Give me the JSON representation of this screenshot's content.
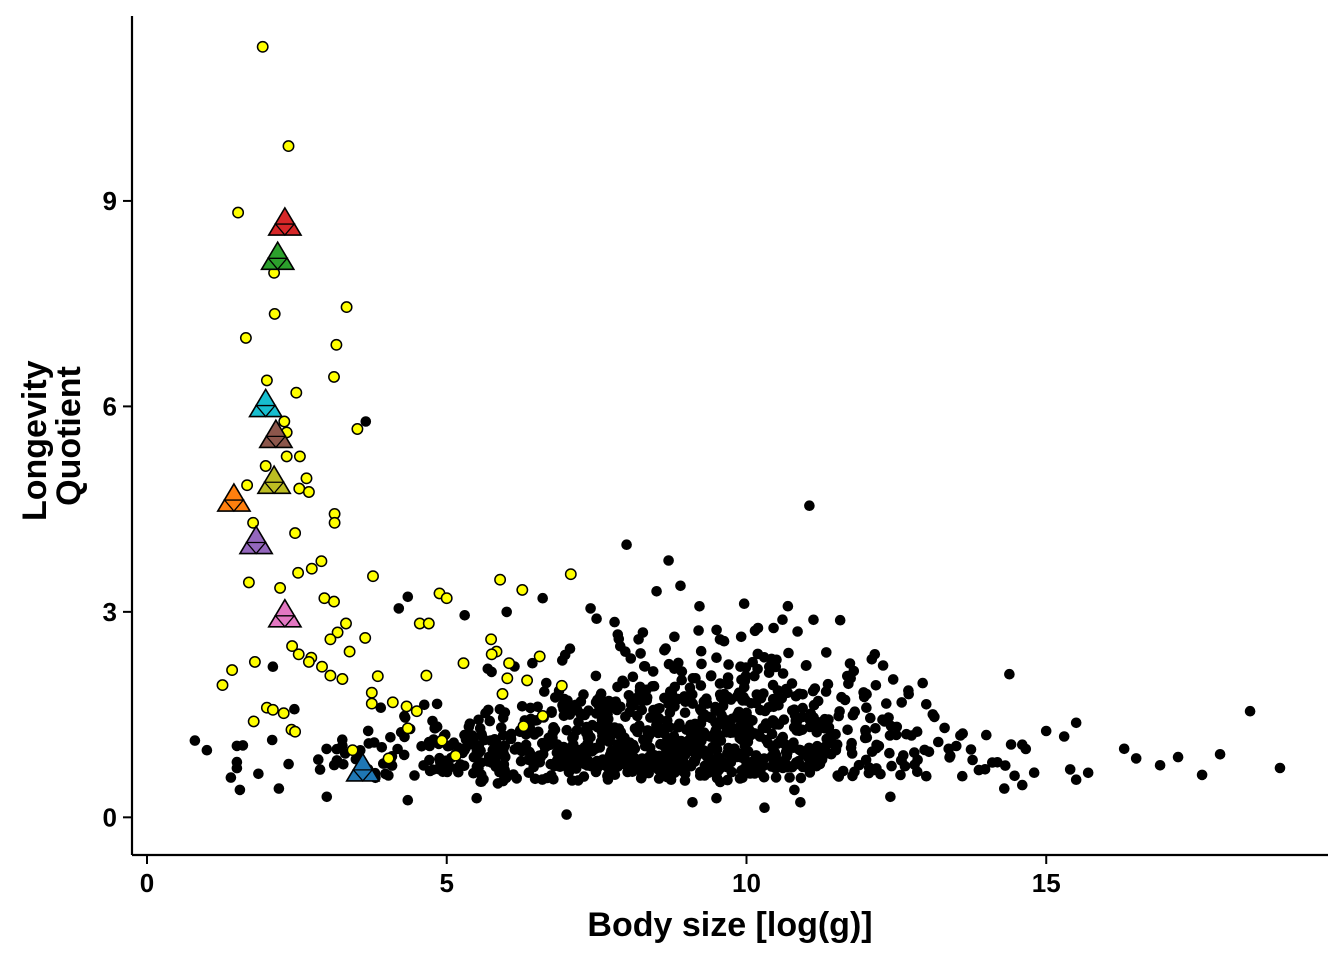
{
  "chart_data": {
    "type": "scatter",
    "title": "",
    "xlabel": "Body size [log(g)]",
    "ylabel_lines": [
      "Longevity",
      "Quotient"
    ],
    "xlim": [
      -0.25,
      19.7
    ],
    "ylim": [
      -0.55,
      11.7
    ],
    "x_ticks": [
      0,
      5,
      10,
      15
    ],
    "y_ticks": [
      0,
      3,
      6,
      9
    ],
    "grid": false,
    "legend": "none",
    "colors": {
      "black_points": "#000000",
      "yellow_points": "#ffff00",
      "point_outline": "#000000"
    },
    "series": [
      {
        "marker": "circle",
        "color": "#ffff00",
        "points": [
          [
            1.93,
            11.25
          ],
          [
            2.36,
            9.8
          ],
          [
            1.52,
            8.83
          ],
          [
            2.12,
            7.95
          ],
          [
            2.13,
            7.35
          ],
          [
            3.33,
            7.45
          ],
          [
            1.65,
            7.0
          ],
          [
            3.16,
            6.9
          ],
          [
            3.12,
            6.43
          ],
          [
            2.0,
            6.38
          ],
          [
            2.49,
            6.2
          ],
          [
            3.51,
            5.67
          ],
          [
            2.29,
            5.78
          ],
          [
            2.33,
            5.62
          ],
          [
            1.98,
            5.13
          ],
          [
            2.33,
            5.27
          ],
          [
            2.55,
            5.27
          ],
          [
            2.66,
            4.95
          ],
          [
            1.67,
            4.85
          ],
          [
            2.54,
            4.8
          ],
          [
            2.7,
            4.75
          ],
          [
            3.13,
            4.43
          ],
          [
            3.13,
            4.3
          ],
          [
            1.77,
            4.3
          ],
          [
            2.47,
            4.15
          ],
          [
            2.91,
            3.74
          ],
          [
            2.75,
            3.63
          ],
          [
            2.52,
            3.57
          ],
          [
            3.77,
            3.52
          ],
          [
            1.7,
            3.43
          ],
          [
            2.22,
            3.35
          ],
          [
            2.96,
            3.2
          ],
          [
            3.12,
            3.15
          ],
          [
            2.32,
            2.97
          ],
          [
            3.32,
            2.83
          ],
          [
            3.18,
            2.7
          ],
          [
            3.06,
            2.6
          ],
          [
            3.64,
            2.62
          ],
          [
            2.42,
            2.5
          ],
          [
            3.38,
            2.42
          ],
          [
            2.53,
            2.38
          ],
          [
            2.74,
            2.33
          ],
          [
            2.7,
            2.27
          ],
          [
            1.8,
            2.27
          ],
          [
            1.42,
            2.15
          ],
          [
            2.92,
            2.2
          ],
          [
            3.06,
            2.07
          ],
          [
            3.26,
            2.02
          ],
          [
            1.26,
            1.93
          ],
          [
            2.0,
            1.6
          ],
          [
            2.1,
            1.57
          ],
          [
            2.28,
            1.52
          ],
          [
            1.78,
            1.4
          ],
          [
            2.41,
            1.28
          ],
          [
            2.47,
            1.25
          ],
          [
            4.88,
            3.27
          ],
          [
            5.0,
            3.2
          ],
          [
            4.55,
            2.83
          ],
          [
            4.7,
            2.83
          ],
          [
            5.89,
            3.47
          ],
          [
            6.26,
            3.32
          ],
          [
            7.07,
            3.55
          ],
          [
            5.74,
            2.6
          ],
          [
            5.83,
            2.42
          ],
          [
            5.75,
            2.38
          ],
          [
            6.55,
            2.35
          ],
          [
            6.04,
            2.25
          ],
          [
            5.28,
            2.25
          ],
          [
            6.34,
            2.0
          ],
          [
            6.01,
            2.03
          ],
          [
            5.93,
            1.8
          ],
          [
            6.92,
            1.92
          ],
          [
            4.66,
            2.07
          ],
          [
            3.85,
            2.06
          ],
          [
            3.75,
            1.82
          ],
          [
            3.75,
            1.66
          ],
          [
            4.1,
            1.68
          ],
          [
            4.33,
            1.62
          ],
          [
            4.5,
            1.55
          ],
          [
            4.35,
            1.3
          ],
          [
            6.28,
            1.33
          ],
          [
            6.6,
            1.48
          ],
          [
            3.43,
            0.98
          ],
          [
            4.03,
            0.86
          ],
          [
            5.15,
            0.9
          ],
          [
            4.92,
            1.12
          ]
        ]
      },
      {
        "marker": "circle",
        "color": "#000000",
        "points": [
          [
            0.8,
            1.12
          ],
          [
            11.05,
            4.55
          ],
          [
            3.65,
            5.78
          ],
          [
            8.0,
            3.98
          ],
          [
            8.7,
            3.75
          ],
          [
            18.4,
            1.55
          ],
          [
            18.9,
            0.72
          ],
          [
            17.9,
            0.92
          ],
          [
            17.6,
            0.62
          ],
          [
            17.2,
            0.88
          ],
          [
            16.9,
            0.76
          ],
          [
            16.5,
            0.86
          ],
          [
            16.3,
            1.0
          ],
          [
            15.7,
            0.65
          ],
          [
            15.5,
            0.55
          ],
          [
            15.5,
            1.38
          ],
          [
            15.4,
            0.7
          ],
          [
            15.3,
            1.18
          ],
          [
            15.0,
            1.26
          ],
          [
            14.6,
            0.47
          ],
          [
            14.3,
            0.42
          ],
          [
            14.6,
            1.06
          ],
          [
            13.0,
            1.65
          ],
          [
            12.7,
            1.85
          ],
          [
            12.3,
            1.4
          ],
          [
            10.8,
            0.4
          ],
          [
            10.9,
            0.22
          ],
          [
            10.3,
            0.14
          ],
          [
            9.5,
            0.28
          ],
          [
            9.1,
            0.22
          ],
          [
            7.0,
            0.04
          ],
          [
            5.5,
            0.28
          ],
          [
            4.35,
            0.25
          ],
          [
            3.0,
            0.3
          ],
          [
            10.7,
            2.4
          ],
          [
            10.5,
            2.3
          ],
          [
            11.0,
            2.22
          ],
          [
            9.9,
            2.2
          ],
          [
            9.5,
            2.33
          ],
          [
            8.2,
            2.6
          ],
          [
            7.8,
            2.85
          ],
          [
            6.6,
            3.2
          ],
          [
            6.0,
            3.0
          ],
          [
            5.3,
            2.95
          ],
          [
            4.35,
            3.22
          ],
          [
            4.2,
            3.05
          ],
          [
            7.4,
            3.05
          ],
          [
            7.5,
            2.9
          ],
          [
            8.5,
            3.3
          ],
          [
            8.9,
            3.38
          ],
          [
            11.7,
            1.95
          ],
          [
            12.0,
            1.6
          ],
          [
            11.3,
            1.3
          ],
          [
            13.2,
            1.1
          ],
          [
            13.4,
            0.9
          ],
          [
            14.1,
            0.8
          ],
          [
            14.0,
            1.2
          ],
          [
            13.6,
            0.6
          ],
          [
            13.0,
            0.6
          ],
          [
            12.4,
            0.3
          ],
          [
            1.4,
            0.58
          ],
          [
            1.55,
            0.4
          ],
          [
            2.2,
            0.42
          ],
          [
            1.0,
            0.98
          ],
          [
            1.6,
            1.05
          ],
          [
            2.1,
            2.2
          ],
          [
            3.7,
            1.08
          ],
          [
            3.9,
            1.6
          ],
          [
            4.8,
            1.3
          ],
          [
            5.5,
            1.0
          ]
        ]
      }
    ],
    "dense_cluster": {
      "seed": 20240917,
      "count": 1000,
      "x_mean": 8.6,
      "x_sd": 2.25,
      "x_min": 1.5,
      "x_max": 14.8,
      "y_base": 0.62,
      "y_min": 0.05,
      "y_max": 3.9
    },
    "highlights": [
      {
        "name": "red",
        "color": "#d62728",
        "x": 2.3,
        "y": 8.65
      },
      {
        "name": "green",
        "color": "#2ca02c",
        "x": 2.18,
        "y": 8.15
      },
      {
        "name": "cyan",
        "color": "#17becf",
        "x": 1.98,
        "y": 6.0
      },
      {
        "name": "brown",
        "color": "#8c564b",
        "x": 2.15,
        "y": 5.55
      },
      {
        "name": "olive",
        "color": "#bcbd22",
        "x": 2.12,
        "y": 4.88
      },
      {
        "name": "orange",
        "color": "#ff7f0e",
        "x": 1.45,
        "y": 4.62
      },
      {
        "name": "purple",
        "color": "#9467bd",
        "x": 1.82,
        "y": 4.0
      },
      {
        "name": "pink",
        "color": "#e377c2",
        "x": 2.3,
        "y": 2.93
      },
      {
        "name": "blue",
        "color": "#1f77b4",
        "x": 3.6,
        "y": 0.68
      }
    ]
  }
}
